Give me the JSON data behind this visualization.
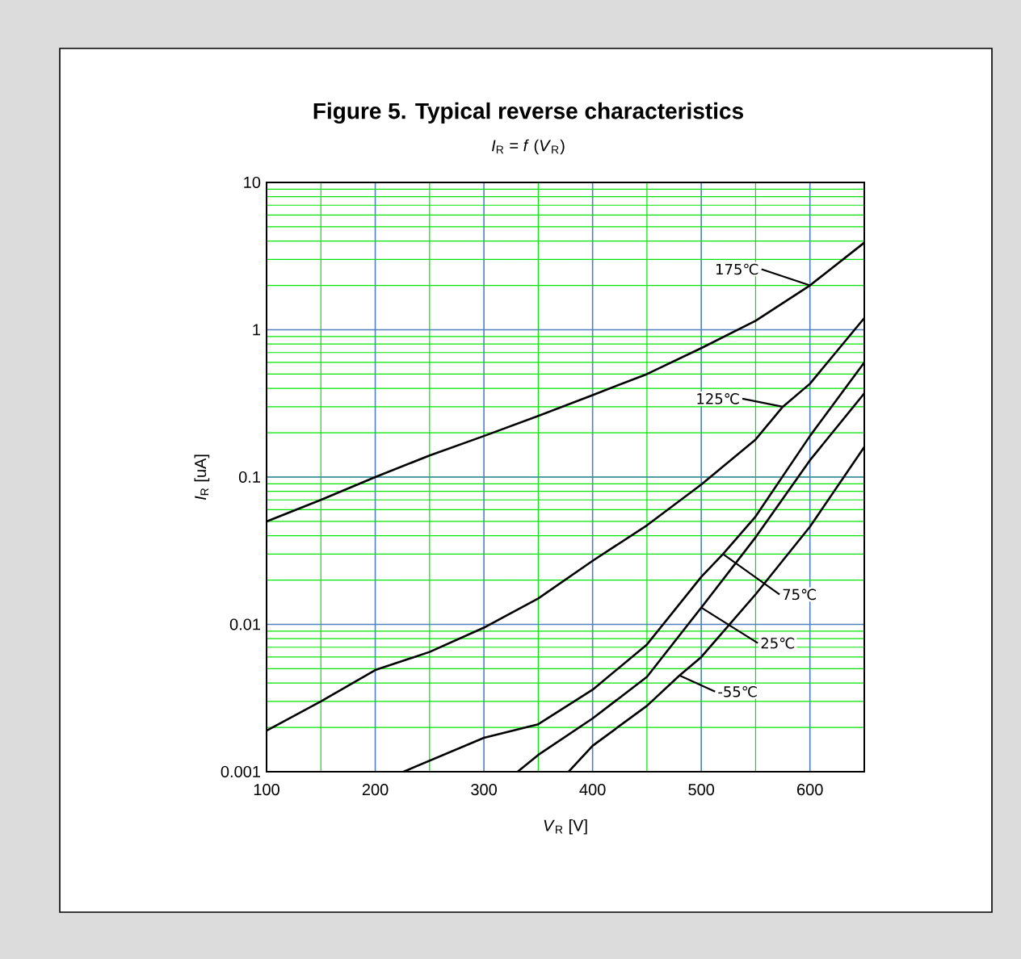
{
  "chart_data": {
    "type": "line",
    "title": "Figure 5. Typical reverse characteristics",
    "subtitle": "*I*$_{R}$ = *f* (*V*$_{R}$)",
    "xlabel": "*V*$_{R}$  [V]",
    "ylabel": "*I*$_{R}$  [uA]",
    "log": "y",
    "grid": true,
    "xlim": [
      100,
      650
    ],
    "ylim": [
      0.001,
      10
    ],
    "xticks": [
      100,
      200,
      300,
      400,
      500,
      600
    ],
    "yticks": [
      0.001,
      0.01,
      0.1,
      1,
      10
    ],
    "series": [
      {
        "color": "#000000",
        "x": [
          100,
          150,
          200,
          250,
          300,
          350,
          400,
          450,
          500,
          550,
          600,
          650
        ],
        "values": [
          0.05,
          0.07,
          0.1,
          0.14,
          0.19,
          0.26,
          0.36,
          0.5,
          0.75,
          1.15,
          2.0,
          3.9
        ]
      },
      {
        "color": "#000000",
        "x": [
          100,
          150,
          200,
          250,
          300,
          350,
          400,
          450,
          500,
          550,
          575,
          600,
          650
        ],
        "values": [
          0.0019,
          0.003,
          0.0049,
          0.0065,
          0.0095,
          0.015,
          0.027,
          0.047,
          0.089,
          0.18,
          0.3,
          0.43,
          1.2
        ]
      },
      {
        "color": "#000000",
        "x": [
          226,
          300,
          350,
          400,
          450,
          500,
          520,
          550,
          600,
          650
        ],
        "values": [
          0.001,
          0.0017,
          0.0021,
          0.0036,
          0.0073,
          0.021,
          0.03,
          0.054,
          0.19,
          0.6
        ]
      },
      {
        "color": "#000000",
        "x": [
          331,
          350,
          400,
          450,
          500,
          550,
          600,
          650
        ],
        "values": [
          0.001,
          0.0013,
          0.0023,
          0.0044,
          0.013,
          0.039,
          0.13,
          0.37
        ]
      },
      {
        "color": "#000000",
        "x": [
          378,
          400,
          450,
          480,
          500,
          550,
          600,
          650
        ],
        "values": [
          0.001,
          0.0015,
          0.0028,
          0.0045,
          0.006,
          0.016,
          0.046,
          0.16
        ]
      }
    ],
    "annotations": [
      {
        "text": "175℃",
        "x": 600,
        "y": 2.0
      },
      {
        "text": "125℃",
        "x": 575,
        "y": 0.3
      },
      {
        "text": "75℃",
        "x": 520,
        "y": 0.03
      },
      {
        "text": "25℃",
        "x": 500,
        "y": 0.013
      },
      {
        "text": "-55℃",
        "x": 480,
        "y": 0.0045
      }
    ]
  }
}
